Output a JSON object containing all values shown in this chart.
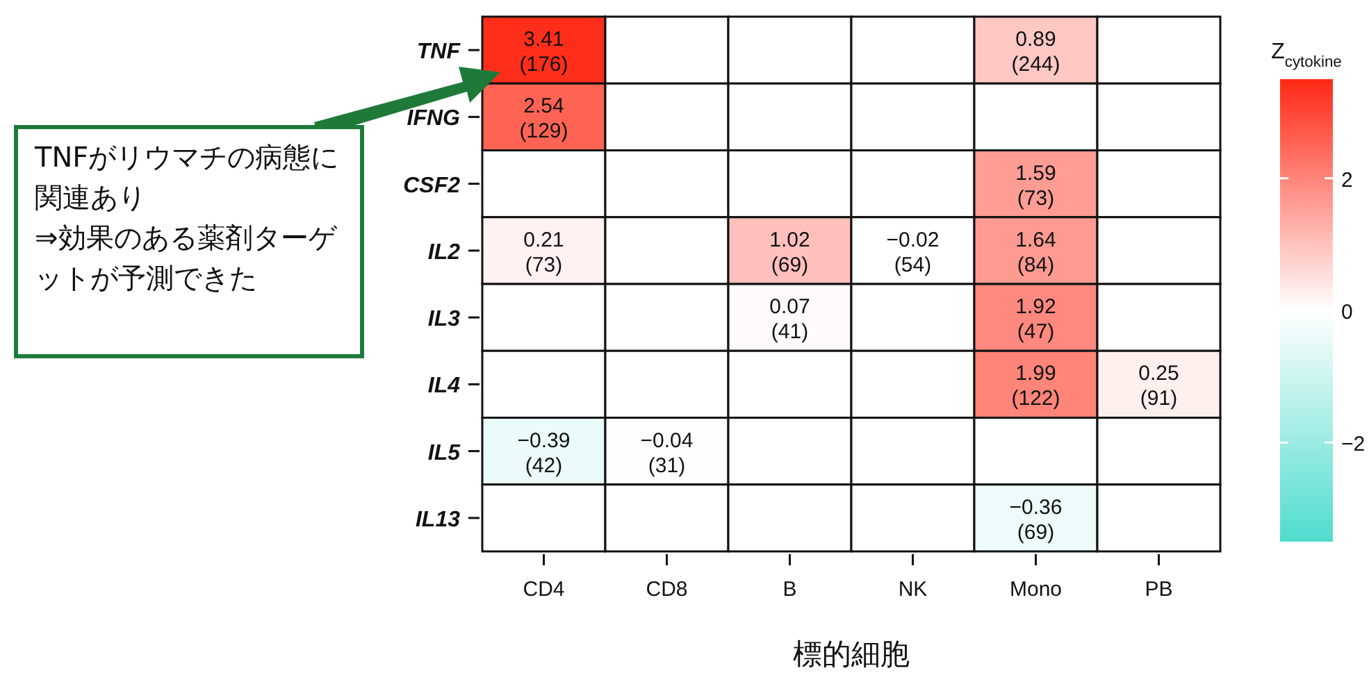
{
  "chart_data": {
    "type": "heatmap",
    "xlabel": "標的細胞",
    "clabel": "Z$_{cytokine}$",
    "categories": [
      "CD4",
      "CD8",
      "B",
      "NK",
      "Mono",
      "PB"
    ],
    "y_categories": [
      "TNF",
      "IFNG",
      "CSF2",
      "IL2",
      "IL3",
      "IL4",
      "IL5",
      "IL13"
    ],
    "cells": [
      [
        3.41,
        null,
        null,
        null,
        0.89,
        null
      ],
      [
        2.54,
        null,
        null,
        null,
        null,
        null
      ],
      [
        null,
        null,
        null,
        null,
        1.59,
        null
      ],
      [
        0.21,
        null,
        1.02,
        -0.02,
        1.64,
        null
      ],
      [
        null,
        null,
        0.07,
        null,
        1.92,
        null
      ],
      [
        null,
        null,
        null,
        null,
        1.99,
        0.25
      ],
      [
        -0.39,
        -0.04,
        null,
        null,
        null,
        null
      ],
      [
        null,
        null,
        null,
        null,
        -0.36,
        null
      ]
    ],
    "cell_labels": [
      [
        "3.41\n(176)",
        null,
        null,
        null,
        "0.89\n(244)",
        null
      ],
      [
        "2.54\n(129)",
        null,
        null,
        null,
        null,
        null
      ],
      [
        null,
        null,
        null,
        null,
        "1.59\n(73)",
        null
      ],
      [
        "0.21\n(73)",
        null,
        "1.02\n(69)",
        "−0.02\n(54)",
        "1.64\n(84)",
        null
      ],
      [
        null,
        null,
        "0.07\n(41)",
        null,
        "1.92\n(47)",
        null
      ],
      [
        null,
        null,
        null,
        null,
        "1.99\n(122)",
        "0.25\n(91)"
      ],
      [
        "−0.39\n(42)",
        "−0.04\n(31)",
        null,
        null,
        null,
        null
      ],
      [
        null,
        null,
        null,
        null,
        "−0.36\n(69)",
        null
      ]
    ],
    "clim": [
      -3.5,
      3.5
    ],
    "cticks": [
      {
        "value": -2,
        "label": "−2"
      },
      0,
      2
    ],
    "annotations": [
      "TNFがリウマチの病態に関連あり\n⇒効果のある薬剤ターゲットが予測できた"
    ]
  }
}
